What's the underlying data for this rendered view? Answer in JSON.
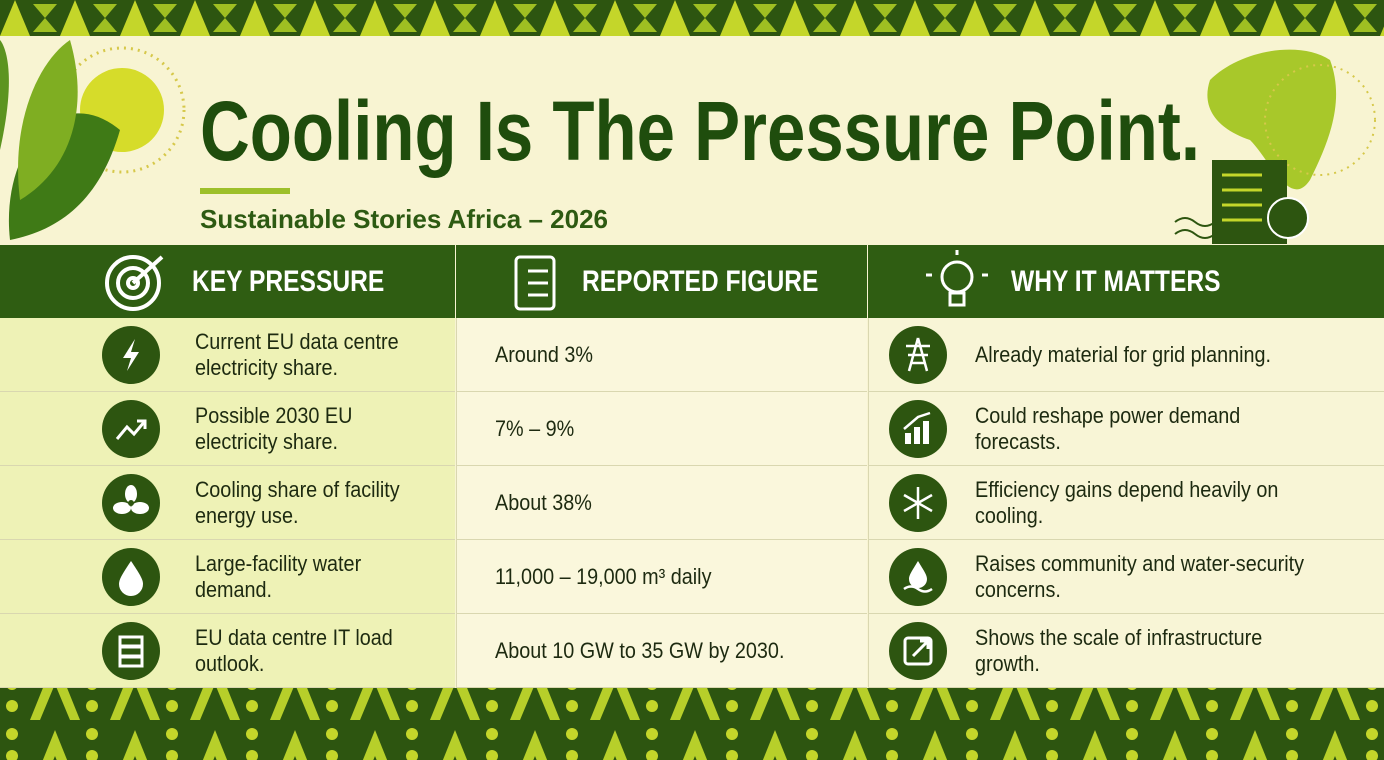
{
  "header": {
    "title": "Cooling Is The Pressure Point.",
    "subtitle": "Sustainable Stories Africa – 2026"
  },
  "table": {
    "headers": [
      "KEY PRESSURE",
      "REPORTED FIGURE",
      "WHY IT MATTERS"
    ],
    "rows": [
      [
        "Current EU data centre electricity share.",
        "Around 3%",
        "Already material for grid planning."
      ],
      [
        "Possible 2030 EU electricity share.",
        "7% – 9%",
        "Could reshape power demand forecasts."
      ],
      [
        "Cooling share of facility energy use.",
        "About 38%",
        "Efficiency gains depend heavily on cooling."
      ],
      [
        "Large-facility water demand.",
        "11,000 – 19,000 m³ daily",
        "Raises community and water-security concerns."
      ],
      [
        "EU data centre IT load outlook.",
        "About 10 GW to 35 GW by 2030.",
        "Shows the scale of infrastructure growth."
      ]
    ]
  }
}
